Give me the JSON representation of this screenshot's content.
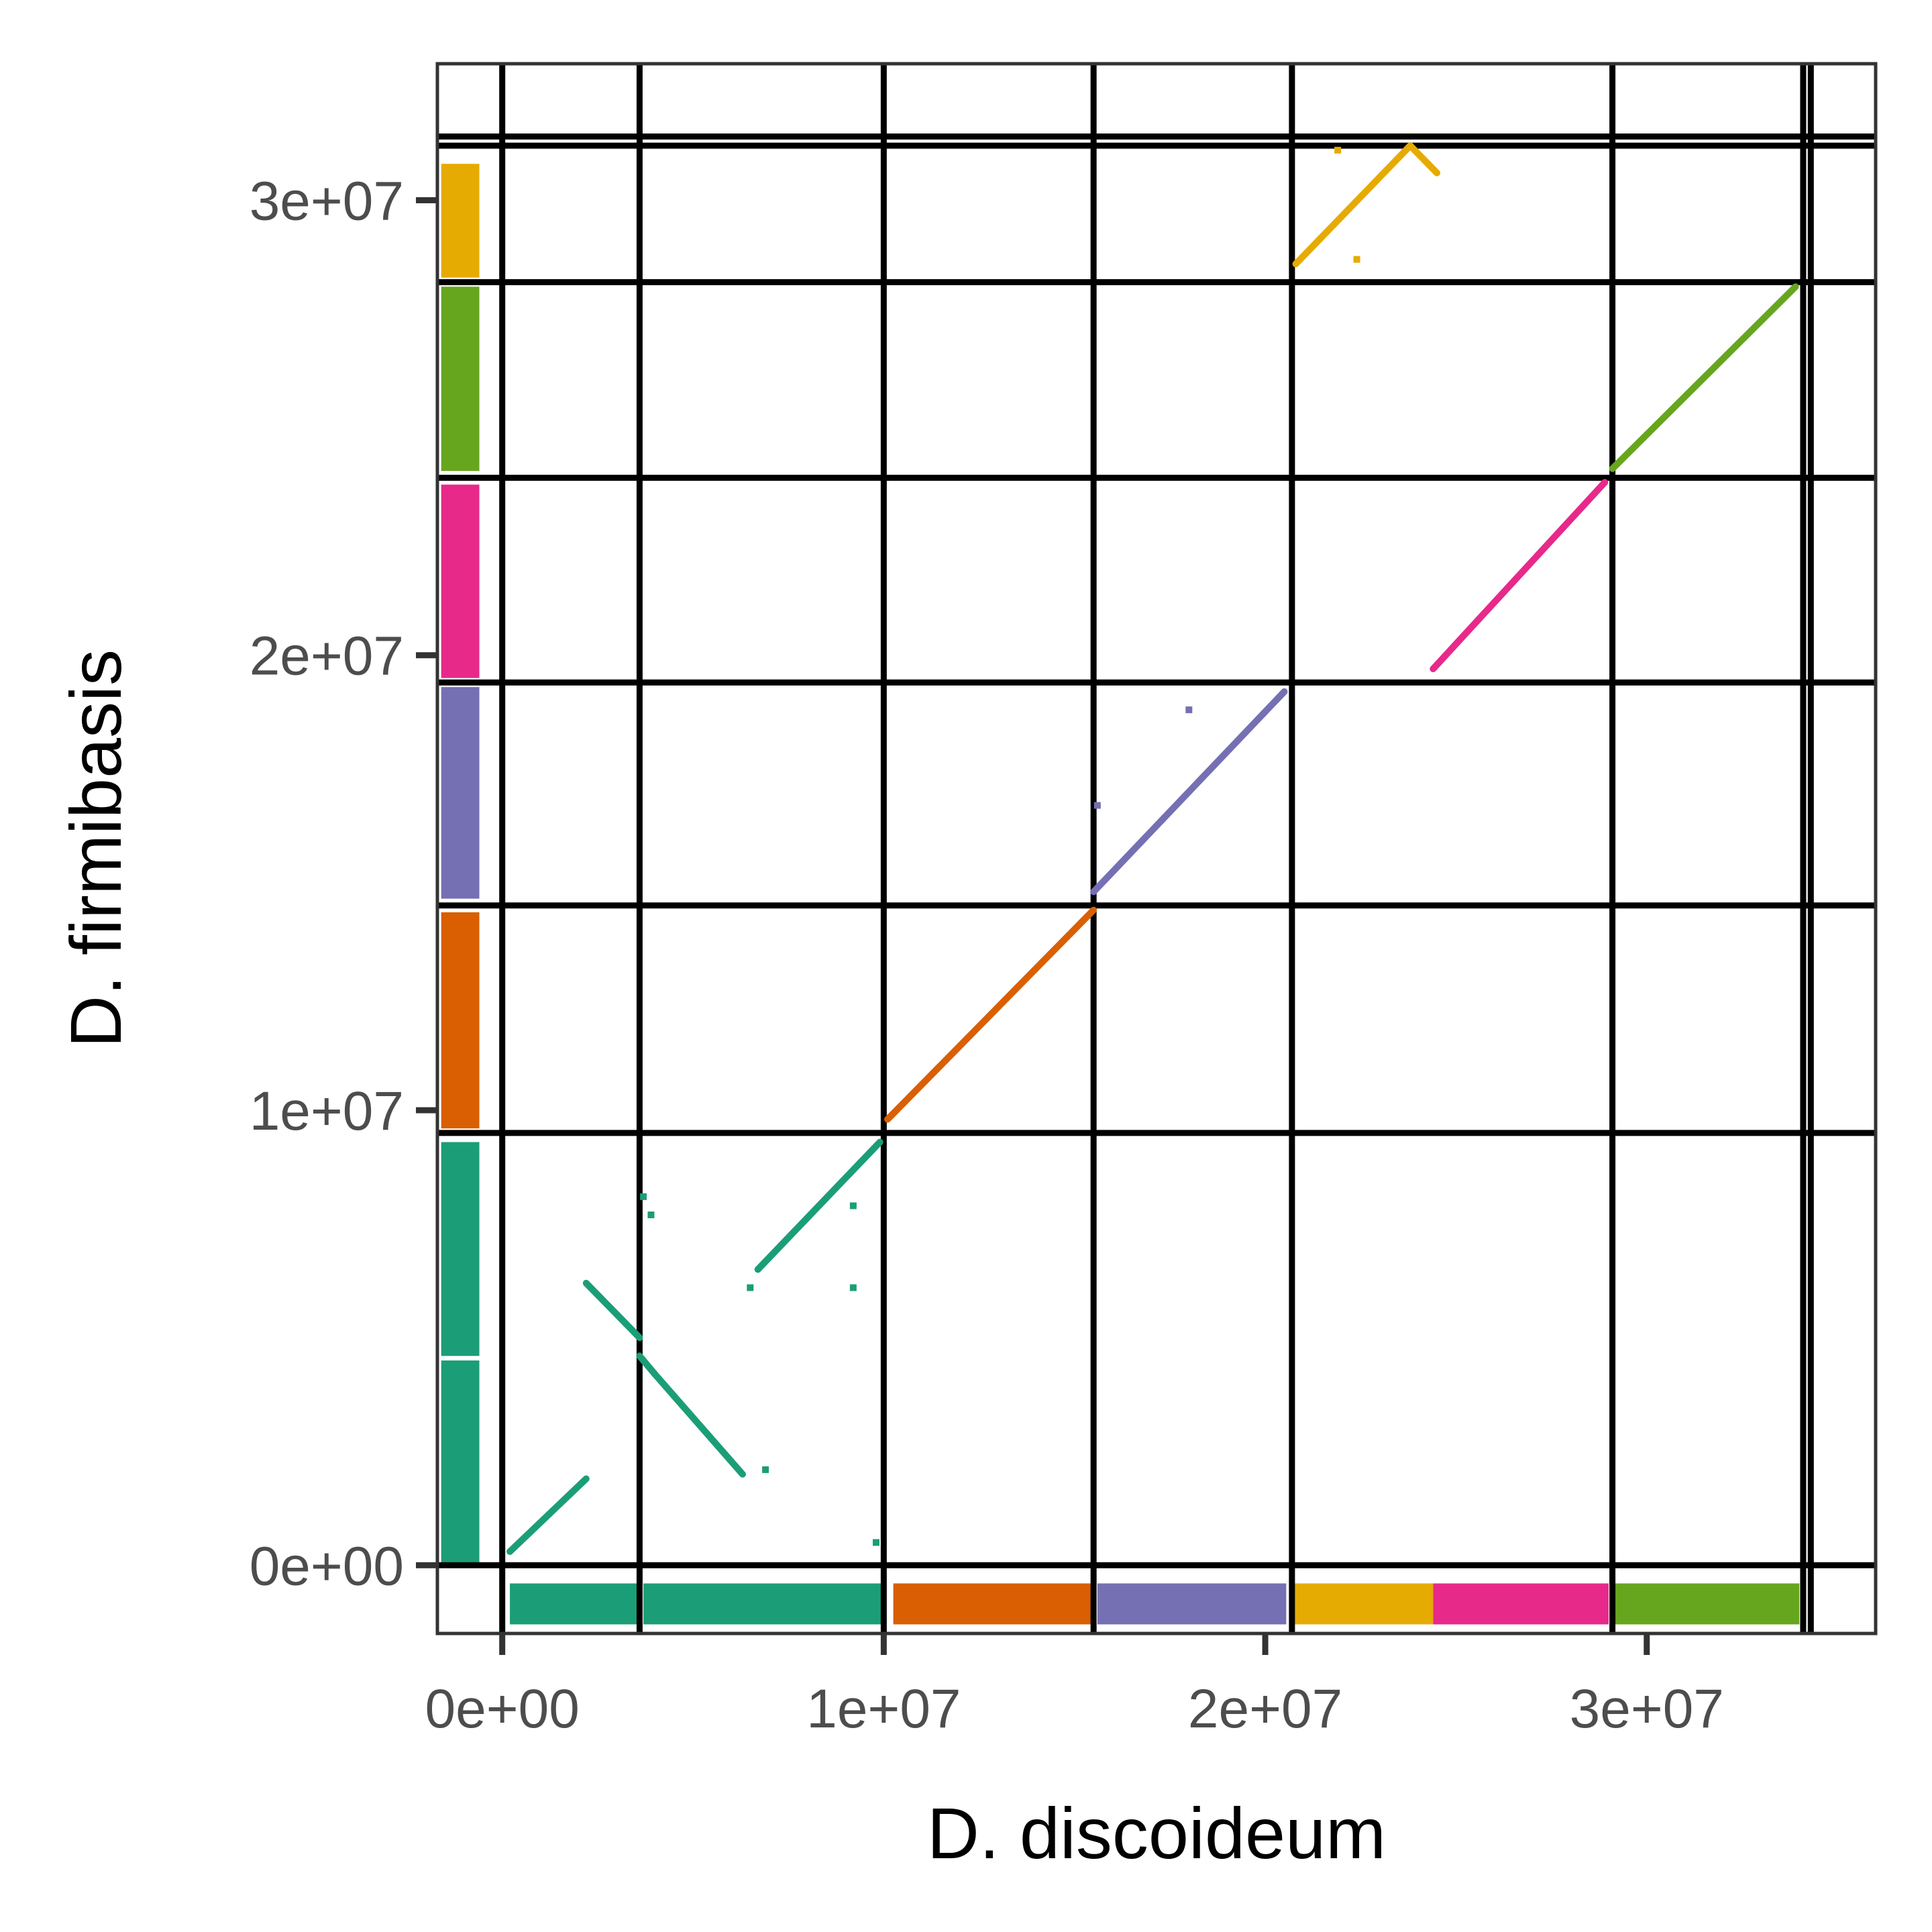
{
  "chart_data": {
    "type": "scatter",
    "title": "",
    "xlabel": "D. discoideum",
    "ylabel": "D. firmibasis",
    "xlim": [
      -1700000,
      36000000
    ],
    "ylim": [
      -1500000,
      33000000
    ],
    "x_ticks": [
      {
        "value": 0,
        "label": "0e+00"
      },
      {
        "value": 10000000,
        "label": "1e+07"
      },
      {
        "value": 20000000,
        "label": "2e+07"
      },
      {
        "value": 30000000,
        "label": "3e+07"
      }
    ],
    "y_ticks": [
      {
        "value": 0,
        "label": "0e+00"
      },
      {
        "value": 10000000,
        "label": "1e+07"
      },
      {
        "value": 20000000,
        "label": "2e+07"
      },
      {
        "value": 30000000,
        "label": "3e+07"
      }
    ],
    "x_boundaries": [
      0,
      3600000,
      10000000,
      15500000,
      20700000,
      29100000,
      34100000,
      34300000
    ],
    "y_boundaries": [
      0,
      9500000,
      14500000,
      19400000,
      23900000,
      28200000,
      31200000,
      31400000
    ],
    "colors": {
      "chr1": "#1b9e77",
      "chr2": "#d95f02",
      "chr3": "#7570b3",
      "chr4": "#e7298a",
      "chr5": "#66a61e",
      "chr6": "#e6ab02",
      "grid": "#000000"
    },
    "x_chromosome_bar": [
      {
        "start": 200000,
        "end": 3550000,
        "color": "chr1"
      },
      {
        "start": 3700000,
        "end": 9950000,
        "color": "chr1"
      },
      {
        "start": 10250000,
        "end": 15450000,
        "color": "chr2"
      },
      {
        "start": 15600000,
        "end": 20550000,
        "color": "chr3"
      },
      {
        "start": 20750000,
        "end": 24400000,
        "color": "chr6"
      },
      {
        "start": 24400000,
        "end": 29000000,
        "color": "chr4"
      },
      {
        "start": 29150000,
        "end": 34000000,
        "color": "chr5"
      }
    ],
    "y_chromosome_bar": [
      {
        "start": 0,
        "end": 4500000,
        "color": "chr1"
      },
      {
        "start": 4600000,
        "end": 9300000,
        "color": "chr1"
      },
      {
        "start": 9600000,
        "end": 14350000,
        "color": "chr2"
      },
      {
        "start": 14650000,
        "end": 19300000,
        "color": "chr3"
      },
      {
        "start": 19500000,
        "end": 23750000,
        "color": "chr4"
      },
      {
        "start": 24050000,
        "end": 28100000,
        "color": "chr5"
      },
      {
        "start": 28300000,
        "end": 30800000,
        "color": "chr6"
      }
    ],
    "segments": [
      {
        "color": "chr1",
        "x": [
          200000,
          2200000
        ],
        "y": [
          300000,
          1900000
        ]
      },
      {
        "color": "chr1",
        "x": [
          2200000,
          3600000
        ],
        "y": [
          6200000,
          5000000
        ]
      },
      {
        "color": "chr1",
        "x": [
          3600000,
          4000000
        ],
        "y": [
          4600000,
          4200000
        ]
      },
      {
        "color": "chr1",
        "x": [
          4000000,
          6300000
        ],
        "y": [
          4200000,
          2000000
        ]
      },
      {
        "color": "chr1",
        "x": [
          6700000,
          9900000
        ],
        "y": [
          6500000,
          9300000
        ]
      },
      {
        "color": "chr2",
        "x": [
          10100000,
          15500000
        ],
        "y": [
          9800000,
          14400000
        ]
      },
      {
        "color": "chr3",
        "x": [
          15500000,
          20500000
        ],
        "y": [
          14800000,
          19200000
        ]
      },
      {
        "color": "chr4",
        "x": [
          24400000,
          28900000
        ],
        "y": [
          19700000,
          23800000
        ]
      },
      {
        "color": "chr5",
        "x": [
          29100000,
          33900000
        ],
        "y": [
          24100000,
          28100000
        ]
      },
      {
        "color": "chr6",
        "x": [
          20800000,
          23800000
        ],
        "y": [
          28600000,
          31200000
        ]
      },
      {
        "color": "chr6",
        "x": [
          23800000,
          24500000
        ],
        "y": [
          31200000,
          30600000
        ]
      }
    ],
    "points": [
      {
        "color": "chr1",
        "x": 6500000,
        "y": 6100000
      },
      {
        "color": "chr1",
        "x": 9200000,
        "y": 6100000
      },
      {
        "color": "chr1",
        "x": 9200000,
        "y": 7900000
      },
      {
        "color": "chr1",
        "x": 3700000,
        "y": 8100000
      },
      {
        "color": "chr1",
        "x": 3900000,
        "y": 7700000
      },
      {
        "color": "chr1",
        "x": 6900000,
        "y": 2100000
      },
      {
        "color": "chr1",
        "x": 9800000,
        "y": 500000
      },
      {
        "color": "chr3",
        "x": 15600000,
        "y": 16700000
      },
      {
        "color": "chr3",
        "x": 18000000,
        "y": 18800000
      },
      {
        "color": "chr6",
        "x": 21900000,
        "y": 31100000
      },
      {
        "color": "chr6",
        "x": 22400000,
        "y": 28700000
      }
    ]
  }
}
